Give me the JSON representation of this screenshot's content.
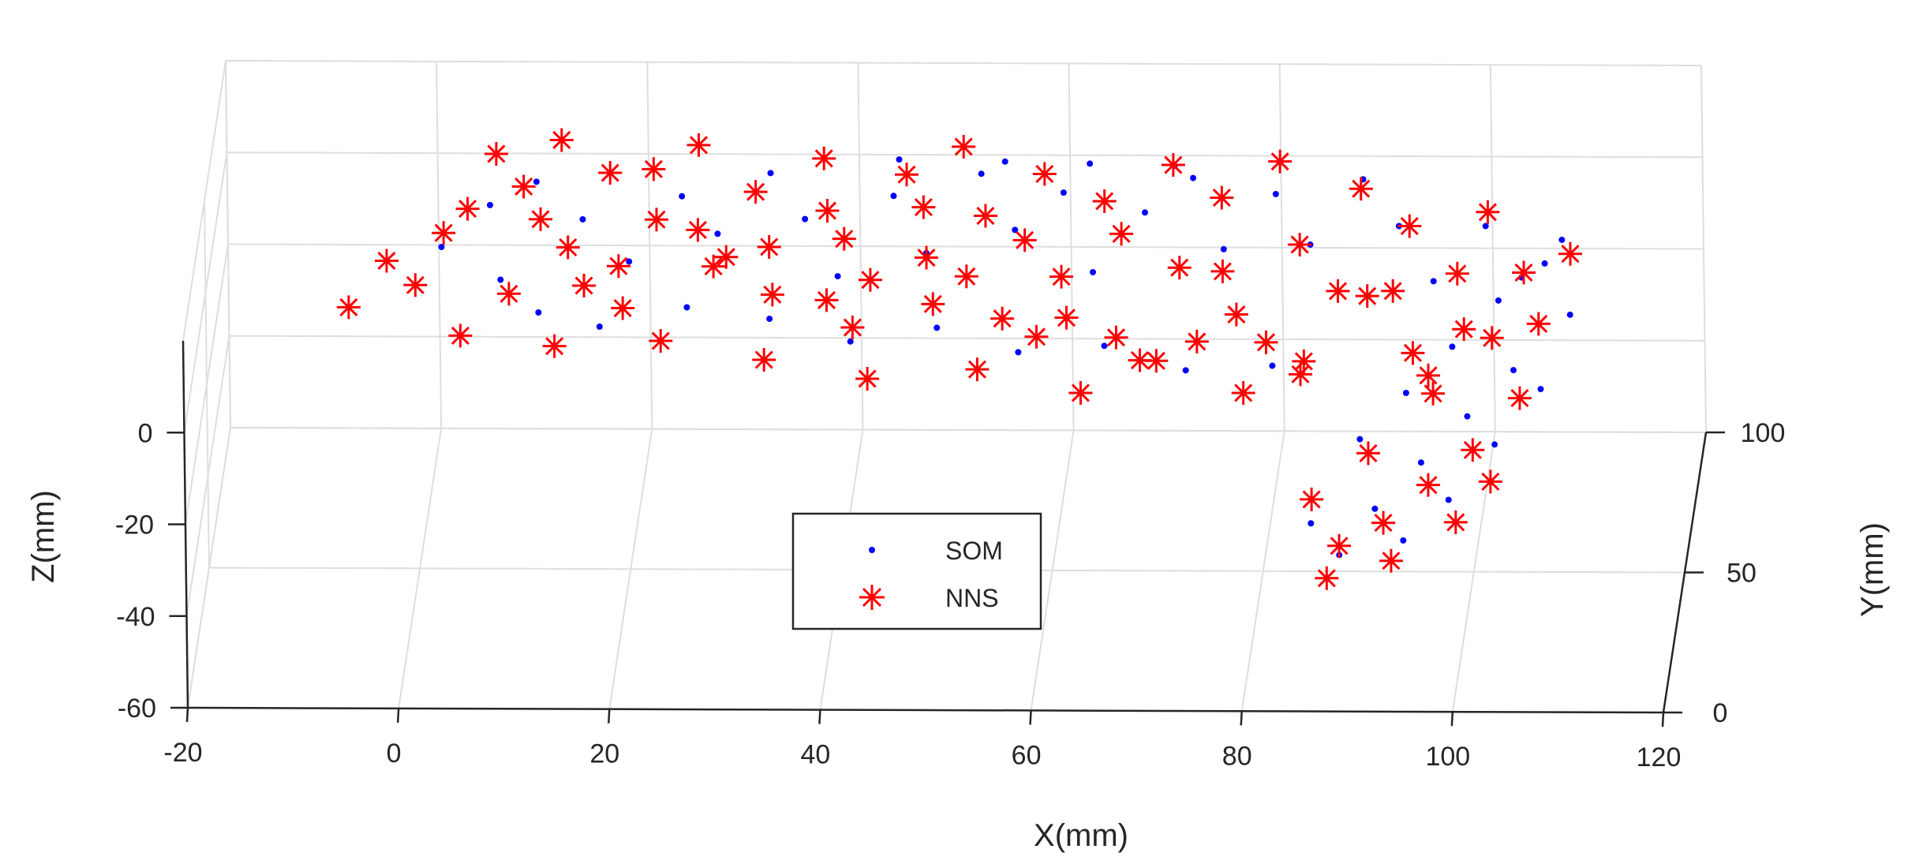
{
  "chart_data": {
    "type": "scatter3d",
    "title": "",
    "xlabel": "X(mm)",
    "ylabel": "Y(mm)",
    "zlabel": "Z(mm)",
    "xlim": [
      -20,
      120
    ],
    "ylim": [
      0,
      100
    ],
    "zlim": [
      -60,
      20
    ],
    "x_ticks": [
      "-20",
      "0",
      "20",
      "40",
      "60",
      "80",
      "100",
      "120"
    ],
    "y_ticks": [
      "0",
      "50",
      "100"
    ],
    "z_ticks": [
      "-60",
      "-40",
      "-20",
      "0"
    ],
    "grid": true,
    "legend": {
      "position": "center",
      "entries": [
        "SOM",
        "NNS"
      ]
    },
    "colors": {
      "SOM": "#0000ff",
      "NNS": "#ff0000",
      "axis": "#262626",
      "grid": "#dedede"
    },
    "series": [
      {
        "name": "SOM",
        "marker": "dot",
        "points": [
          [
            2,
            60,
            4
          ],
          [
            6,
            75,
            4
          ],
          [
            10,
            85,
            3
          ],
          [
            15,
            70,
            4
          ],
          [
            20,
            55,
            4
          ],
          [
            24,
            80,
            3
          ],
          [
            28,
            65,
            4
          ],
          [
            32,
            90,
            2
          ],
          [
            36,
            72,
            3
          ],
          [
            40,
            50,
            4
          ],
          [
            44,
            82,
            2
          ],
          [
            48,
            60,
            3
          ],
          [
            52,
            90,
            2
          ],
          [
            56,
            70,
            2
          ],
          [
            60,
            85,
            1
          ],
          [
            64,
            55,
            2
          ],
          [
            68,
            78,
            1
          ],
          [
            72,
            92,
            0
          ],
          [
            76,
            65,
            1
          ],
          [
            80,
            88,
            -1
          ],
          [
            84,
            70,
            -1
          ],
          [
            88,
            95,
            -2
          ],
          [
            92,
            80,
            -3
          ],
          [
            96,
            62,
            -4
          ],
          [
            100,
            85,
            -6
          ],
          [
            104,
            70,
            -8
          ],
          [
            107,
            90,
            -12
          ],
          [
            104,
            50,
            -16
          ],
          [
            100,
            40,
            -20
          ],
          [
            96,
            30,
            -24
          ],
          [
            92,
            20,
            -28
          ],
          [
            89,
            10,
            -32
          ],
          [
            86,
            18,
            -30
          ],
          [
            90,
            35,
            -22
          ],
          [
            94,
            45,
            -18
          ],
          [
            98,
            55,
            -14
          ],
          [
            102,
            65,
            -10
          ],
          [
            106,
            75,
            -8
          ],
          [
            109,
            60,
            -10
          ],
          [
            107,
            40,
            -14
          ],
          [
            103,
            30,
            -20
          ],
          [
            99,
            20,
            -26
          ],
          [
            95,
            12,
            -30
          ],
          [
            8,
            50,
            3
          ],
          [
            12,
            40,
            2
          ],
          [
            18,
            35,
            2
          ],
          [
            26,
            42,
            2
          ],
          [
            34,
            38,
            2
          ],
          [
            42,
            30,
            2
          ],
          [
            50,
            35,
            2
          ],
          [
            58,
            28,
            1
          ],
          [
            66,
            32,
            0
          ],
          [
            74,
            25,
            -1
          ],
          [
            82,
            30,
            -3
          ],
          [
            44,
            95,
            2
          ],
          [
            54,
            96,
            1
          ],
          [
            62,
            97,
            0
          ],
          [
            70,
            98,
            -1
          ]
        ]
      },
      {
        "name": "NNS",
        "marker": "asterisk",
        "points": [
          [
            -6,
            40,
            3
          ],
          [
            -3,
            55,
            4
          ],
          [
            0,
            48,
            3
          ],
          [
            2,
            65,
            4
          ],
          [
            4,
            72,
            5
          ],
          [
            6,
            90,
            6
          ],
          [
            9,
            80,
            5
          ],
          [
            12,
            95,
            6
          ],
          [
            14,
            60,
            4
          ],
          [
            17,
            85,
            5
          ],
          [
            20,
            40,
            3
          ],
          [
            22,
            70,
            4
          ],
          [
            25,
            95,
            5
          ],
          [
            28,
            55,
            3
          ],
          [
            31,
            80,
            4
          ],
          [
            34,
            45,
            3
          ],
          [
            37,
            92,
            4
          ],
          [
            40,
            65,
            3
          ],
          [
            42,
            35,
            2
          ],
          [
            45,
            88,
            3
          ],
          [
            48,
            60,
            2
          ],
          [
            50,
            98,
            3
          ],
          [
            53,
            75,
            2
          ],
          [
            56,
            40,
            1
          ],
          [
            58,
            90,
            2
          ],
          [
            61,
            55,
            1
          ],
          [
            64,
            82,
            1
          ],
          [
            67,
            35,
            0
          ],
          [
            70,
            95,
            1
          ],
          [
            72,
            60,
            0
          ],
          [
            75,
            85,
            0
          ],
          [
            78,
            45,
            -1
          ],
          [
            80,
            98,
            0
          ],
          [
            83,
            70,
            -1
          ],
          [
            85,
            30,
            -2
          ],
          [
            88,
            90,
            -1
          ],
          [
            90,
            55,
            -3
          ],
          [
            93,
            80,
            -3
          ],
          [
            95,
            38,
            -5
          ],
          [
            98,
            68,
            -6
          ],
          [
            100,
            90,
            -6
          ],
          [
            102,
            50,
            -9
          ],
          [
            104,
            75,
            -10
          ],
          [
            106,
            60,
            -12
          ],
          [
            108,
            85,
            -12
          ],
          [
            105,
            40,
            -16
          ],
          [
            101,
            28,
            -20
          ],
          [
            97,
            22,
            -24
          ],
          [
            93,
            15,
            -28
          ],
          [
            89,
            10,
            -30
          ],
          [
            86,
            20,
            -26
          ],
          [
            91,
            30,
            -22
          ],
          [
            96,
            48,
            -16
          ],
          [
            99,
            58,
            -12
          ],
          [
            84,
            45,
            -14
          ],
          [
            79,
            35,
            -12
          ],
          [
            74,
            50,
            -10
          ],
          [
            69,
            40,
            -8
          ],
          [
            64,
            25,
            -6
          ],
          [
            59,
            45,
            -6
          ],
          [
            54,
            30,
            -4
          ],
          [
            49,
            50,
            -2
          ],
          [
            44,
            20,
            0
          ],
          [
            39,
            48,
            0
          ],
          [
            34,
            25,
            1
          ],
          [
            29,
            60,
            2
          ],
          [
            24,
            30,
            2
          ],
          [
            19,
            55,
            3
          ],
          [
            14,
            28,
            2
          ],
          [
            9,
            45,
            3
          ],
          [
            5,
            30,
            3
          ],
          [
            11,
            70,
            4
          ],
          [
            16,
            48,
            3
          ],
          [
            21,
            88,
            4
          ],
          [
            26,
            68,
            3
          ],
          [
            33,
            62,
            3
          ],
          [
            38,
            75,
            3
          ],
          [
            43,
            52,
            2
          ],
          [
            47,
            78,
            2
          ],
          [
            52,
            55,
            1
          ],
          [
            57,
            68,
            1
          ],
          [
            62,
            42,
            0
          ],
          [
            66,
            72,
            0
          ],
          [
            71,
            30,
            -2
          ],
          [
            76,
            62,
            -2
          ],
          [
            81,
            40,
            -4
          ],
          [
            87,
            60,
            -5
          ],
          [
            92,
            65,
            -8
          ],
          [
            97,
            35,
            -12
          ],
          [
            103,
            20,
            -22
          ],
          [
            100,
            12,
            -26
          ],
          [
            94,
            8,
            -32
          ],
          [
            88,
            5,
            -34
          ]
        ]
      }
    ]
  }
}
